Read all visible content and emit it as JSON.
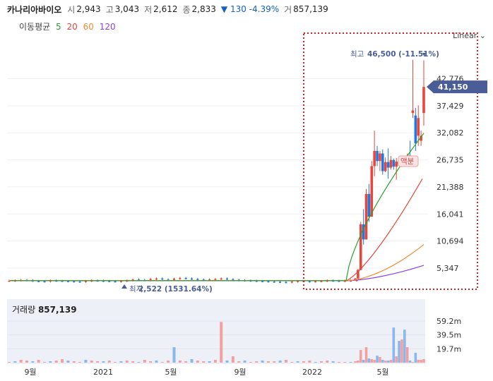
{
  "header": {
    "name": "카나리아바이오",
    "open_label": "시",
    "open": "2,943",
    "high_label": "고",
    "high": "3,043",
    "low_label": "저",
    "low": "2,612",
    "close_label": "종",
    "close": "2,833",
    "change": "▼ 130 -4.39%",
    "volume_label": "거",
    "volume": "857,139"
  },
  "moving_average": {
    "label": "이동평균",
    "periods": [
      {
        "text": "5",
        "color": "#2ca02c"
      },
      {
        "text": "20",
        "color": "#e8453c"
      },
      {
        "text": "60",
        "color": "#ef8a2e"
      },
      {
        "text": "120",
        "color": "#8b3ff0"
      }
    ]
  },
  "scale_selector": "Linear",
  "annotations": {
    "max_label": "최고",
    "max_value": "46,500 (-11.51%)",
    "min_label": "최저",
    "min_value": "2,522 (1531.64%)",
    "current_price": "41,150",
    "event_label": "액분"
  },
  "volume_panel": {
    "title": "거래량",
    "value": "857,139"
  },
  "colors": {
    "up": "#e8453c",
    "down": "#1f7ae0",
    "current_tag": "#4a5d96",
    "highlight_box": "#e0201f",
    "volume_up": "#f3a0a0",
    "volume_down": "#8ab8ee"
  },
  "chart_data": {
    "type": "candlestick",
    "y_axis": {
      "ticks": [
        5347,
        10694,
        16041,
        21388,
        26735,
        32082,
        37429,
        42776
      ],
      "tick_labels": [
        "5,347",
        "10,694",
        "16,041",
        "21,388",
        "26,735",
        "32,082",
        "37,429",
        "42,776"
      ]
    },
    "x_axis": {
      "tick_labels": [
        "9월",
        "2021",
        "5월",
        "9월",
        "2022",
        "5월"
      ]
    },
    "volume_axis": {
      "ticks": [
        19.7,
        39.5,
        59.2
      ],
      "tick_labels": [
        "19.7m",
        "39.5m",
        "59.2m"
      ],
      "unit": "m"
    },
    "candles_early": {
      "description_free": true,
      "closes": [
        2850,
        2900,
        3000,
        2950,
        2800,
        2750,
        2700,
        2900,
        2850,
        2800,
        2750,
        2700,
        2650,
        2800,
        2900,
        2850,
        2800,
        2750,
        2700,
        2800,
        2900,
        3100,
        3000,
        2950,
        3200,
        3300,
        3100,
        3000,
        3250,
        3400,
        3300,
        3200,
        3100,
        3000,
        3100,
        3200,
        3300,
        3150,
        3050,
        2950,
        2900,
        2850,
        2800,
        2750,
        2700,
        2650,
        2600,
        2550,
        2700,
        2800,
        2750,
        2700,
        2750,
        2800,
        2900,
        2850,
        2800,
        2850,
        2900,
        3000
      ]
    },
    "candles_recent": [
      {
        "o": 3000,
        "h": 3400,
        "l": 2900,
        "c": 3300
      },
      {
        "o": 3300,
        "h": 5200,
        "l": 3200,
        "c": 5000
      },
      {
        "o": 5000,
        "h": 14500,
        "l": 4900,
        "c": 14000
      },
      {
        "o": 14000,
        "h": 17000,
        "l": 10000,
        "c": 11000
      },
      {
        "o": 11000,
        "h": 21000,
        "l": 11000,
        "c": 20000
      },
      {
        "o": 20000,
        "h": 22000,
        "l": 14500,
        "c": 15500
      },
      {
        "o": 15500,
        "h": 26500,
        "l": 15500,
        "c": 25500
      },
      {
        "o": 25500,
        "h": 32500,
        "l": 23500,
        "c": 28500
      },
      {
        "o": 28500,
        "h": 29500,
        "l": 25500,
        "c": 26500
      },
      {
        "o": 26500,
        "h": 28500,
        "l": 24500,
        "c": 28000
      },
      {
        "o": 28000,
        "h": 28800,
        "l": 23800,
        "c": 24500
      },
      {
        "o": 24500,
        "h": 27200,
        "l": 24300,
        "c": 26300
      },
      {
        "o": 26300,
        "h": 29000,
        "l": 23000,
        "c": 25200
      },
      {
        "o": 25200,
        "h": 27500,
        "l": 24800,
        "c": 26700
      },
      {
        "o": 26700,
        "h": 27000,
        "l": 24800,
        "c": 25400
      },
      {
        "o": 25400,
        "h": 27100,
        "l": 22800,
        "c": 26400
      },
      {
        "o": 26400,
        "h": 27000,
        "l": 25500,
        "c": 25900
      },
      {
        "o": 25900,
        "h": 26500,
        "l": 25300,
        "c": 26200
      },
      {
        "o": 26200,
        "h": 26800,
        "l": 25500,
        "c": 25800
      },
      {
        "o": 25800,
        "h": 28000,
        "l": 25500,
        "c": 27600
      },
      {
        "o": 27600,
        "h": 30500,
        "l": 26500,
        "c": 27000
      },
      {
        "o": 36000,
        "h": 46500,
        "l": 35000,
        "c": 36500
      },
      {
        "o": 35500,
        "h": 37000,
        "l": 28500,
        "c": 30000
      },
      {
        "o": 31500,
        "h": 37500,
        "l": 29500,
        "c": 35000
      },
      {
        "o": 30500,
        "h": 32500,
        "l": 29500,
        "c": 31500
      },
      {
        "o": 36000,
        "h": 46400,
        "l": 33500,
        "c": 41150
      }
    ],
    "moving_averages": {
      "ma5_end": 32000,
      "ma20_end": 23000,
      "ma60_end": 10000,
      "ma120_end": 5900
    },
    "volume_early_m": [
      1,
      2,
      4,
      3,
      2,
      4,
      1,
      2,
      3,
      5,
      3,
      2,
      1,
      4,
      3,
      2,
      2,
      3,
      1,
      2,
      3,
      2,
      1,
      4,
      2,
      3,
      1,
      3,
      22,
      3,
      2,
      5,
      3,
      2,
      2,
      4,
      58,
      3,
      9,
      2,
      3,
      1,
      2,
      3,
      2,
      2,
      3,
      4,
      1,
      2,
      2,
      3,
      1,
      2,
      3,
      2,
      1,
      1,
      1,
      2
    ],
    "volume_recent_m": [
      2,
      3,
      18,
      4,
      22,
      6,
      5,
      4,
      10,
      8,
      4,
      3,
      3,
      4,
      50,
      9,
      31,
      33,
      47,
      22,
      3,
      1,
      14,
      4,
      4,
      5
    ]
  }
}
